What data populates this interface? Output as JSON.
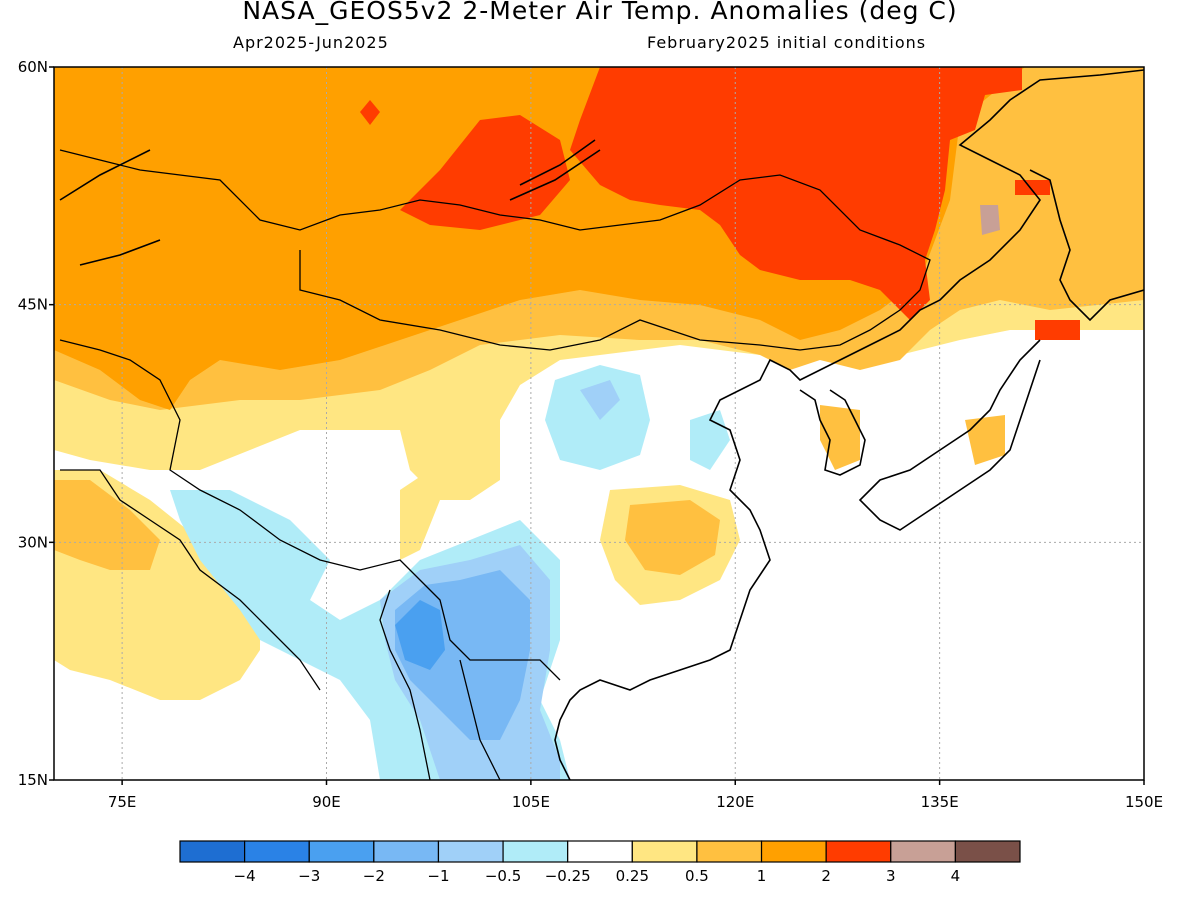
{
  "header": {
    "title": "NASA_GEOS5v2 2-Meter Air Temp. Anomalies (deg C)",
    "period": "Apr2025-Jun2025",
    "initial_conditions": "February2025 initial conditions"
  },
  "map": {
    "lon_range": [
      70,
      150
    ],
    "lat_range": [
      15,
      60
    ],
    "lat_ticks": [
      "60N",
      "45N",
      "30N",
      "15N"
    ],
    "lon_ticks": [
      "75E",
      "90E",
      "105E",
      "120E",
      "135E",
      "150E"
    ],
    "grid_lines": true,
    "colors": {
      "coast": "#000000",
      "grid": "#aaaaaa"
    }
  },
  "colorbar": {
    "colors": [
      "#1e6ed2",
      "#2a82e6",
      "#4aa0f0",
      "#78b8f4",
      "#a0d0f8",
      "#b0ecf8",
      "#ffffff",
      "#ffe682",
      "#ffc040",
      "#ffa000",
      "#ff3c00",
      "#c8a096",
      "#7a5048"
    ],
    "labels": [
      "-4",
      "-3",
      "-2",
      "-1",
      "-0.5",
      "-0.25",
      "0.25",
      "0.5",
      "1",
      "2",
      "3",
      "4"
    ]
  }
}
